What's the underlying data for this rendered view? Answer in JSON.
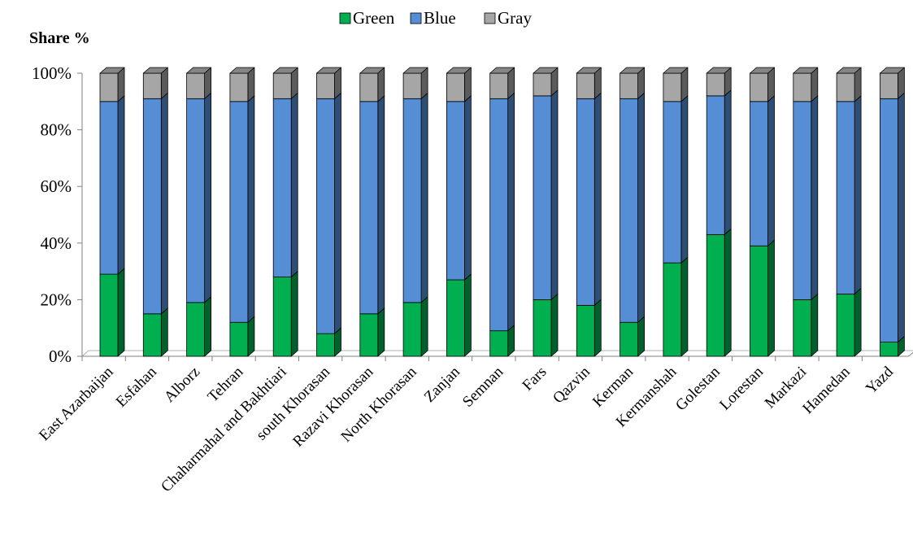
{
  "chart_data": {
    "type": "bar",
    "stacked": true,
    "percent": true,
    "ylabel": "Share %",
    "xlabel": "",
    "ylim": [
      0,
      100
    ],
    "yticks": [
      "0%",
      "20%",
      "40%",
      "60%",
      "80%",
      "100%"
    ],
    "legend_position": "top-center",
    "grid": false,
    "categories": [
      "East Azarbaijan",
      "Esfahan",
      "Alborz",
      "Tehran",
      "Chaharmahal and Bakhtiari",
      "south Khorasan",
      "Razavi Khorasan",
      "North Khorasan",
      "Zanjan",
      "Semnan",
      "Fars",
      "Qazvin",
      "Kerman",
      "Kermanshah",
      "Golestan",
      "Lorestan",
      "Markazi",
      "Hamedan",
      "Yazd"
    ],
    "series": [
      {
        "name": "Green",
        "color": "#00b050",
        "values": [
          29,
          15,
          19,
          12,
          28,
          8,
          15,
          19,
          27,
          9,
          20,
          18,
          12,
          33,
          43,
          39,
          20,
          22,
          5
        ]
      },
      {
        "name": "Blue",
        "color": "#558ed5",
        "values": [
          61,
          76,
          72,
          78,
          63,
          83,
          75,
          72,
          63,
          82,
          72,
          73,
          79,
          57,
          49,
          51,
          70,
          68,
          86
        ]
      },
      {
        "name": "Gray",
        "color": "#a6a6a6",
        "values": [
          10,
          9,
          9,
          10,
          9,
          9,
          10,
          9,
          10,
          9,
          8,
          9,
          9,
          10,
          8,
          10,
          10,
          10,
          9
        ]
      }
    ]
  }
}
